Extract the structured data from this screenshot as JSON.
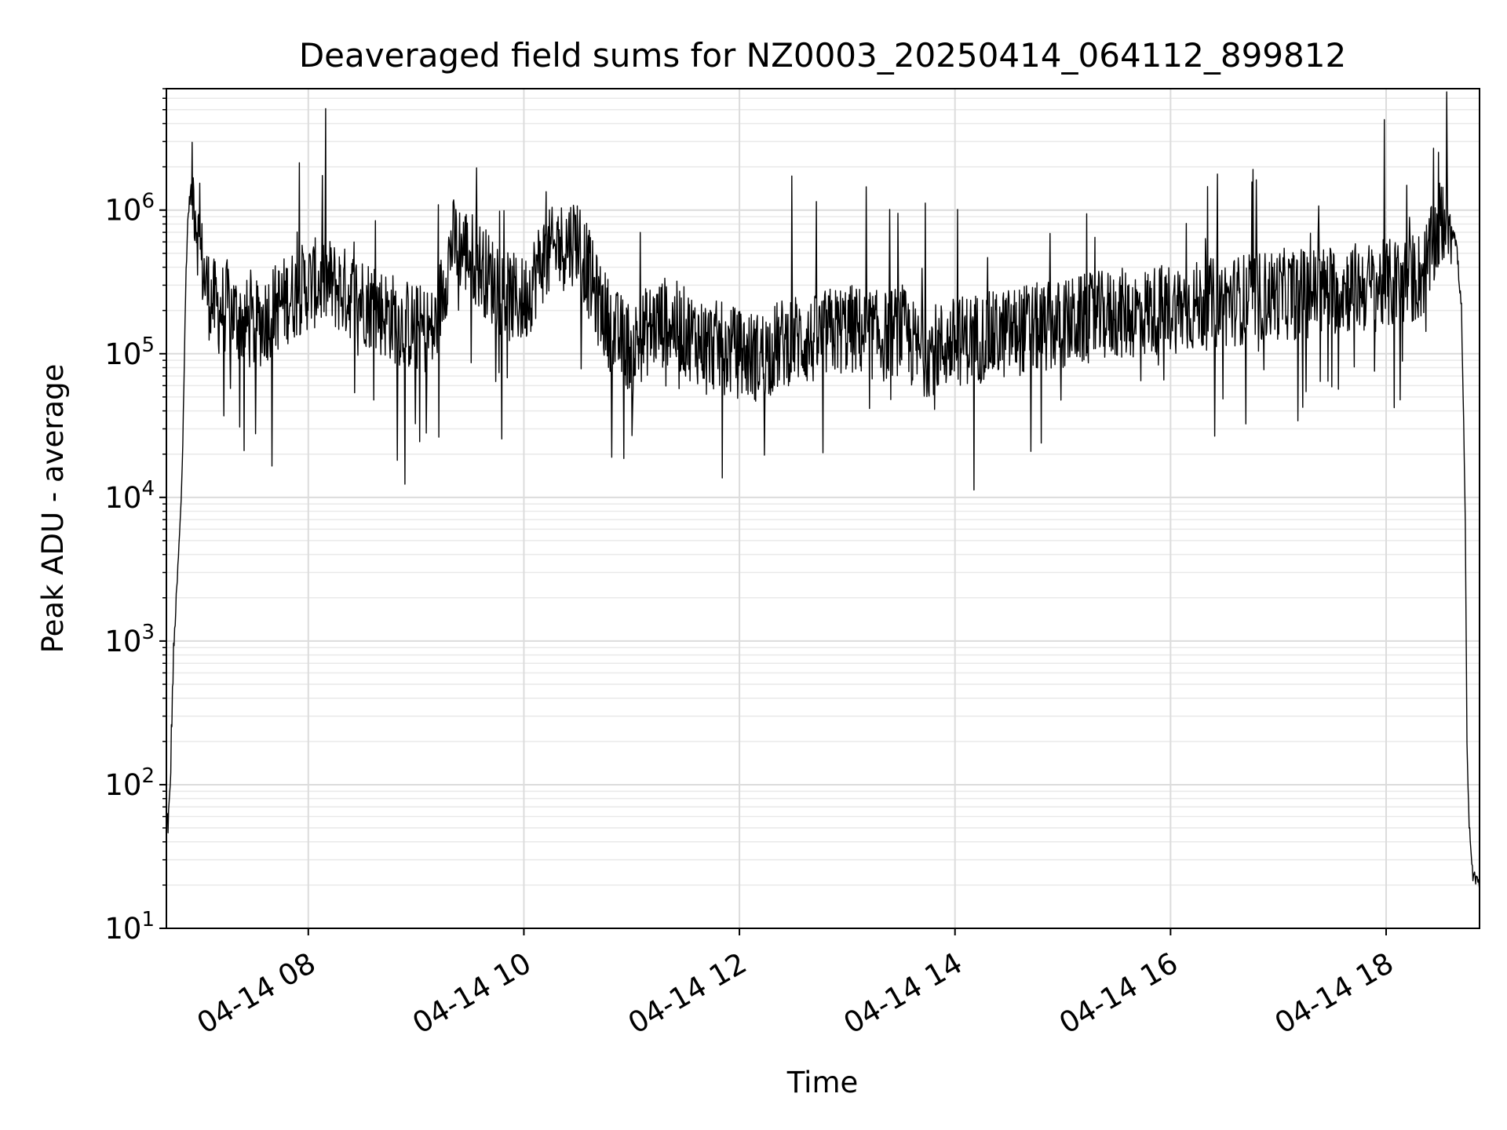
{
  "chart_data": {
    "type": "line",
    "title": "Deaveraged field sums for NZ0003_20250414_064112_899812",
    "xlabel": "Time",
    "ylabel": "Peak ADU - average",
    "yscale": "log",
    "ylim": [
      10,
      7000000
    ],
    "xlim": [
      "2025-04-14 06:41",
      "2025-04-14 18:52"
    ],
    "grid": true,
    "line_color": "#000000",
    "x_ticks": [
      "04-14 08",
      "04-14 10",
      "04-14 12",
      "04-14 14",
      "04-14 16",
      "04-14 18"
    ],
    "y_ticks": [
      {
        "base": "10",
        "exp": "1"
      },
      {
        "base": "10",
        "exp": "2"
      },
      {
        "base": "10",
        "exp": "3"
      },
      {
        "base": "10",
        "exp": "4"
      },
      {
        "base": "10",
        "exp": "5"
      },
      {
        "base": "10",
        "exp": "6"
      }
    ],
    "series": [
      {
        "x": [
          "06:41",
          "06:42",
          "06:43",
          "06:44",
          "06:45",
          "06:46",
          "06:47",
          "06:48",
          "06:49",
          "06:50",
          "06:51",
          "06:52",
          "06:53",
          "06:54",
          "06:55",
          "06:57",
          "06:59",
          "07:02",
          "07:05",
          "07:10",
          "07:15",
          "07:20",
          "07:30",
          "07:40",
          "07:50",
          "08:00",
          "08:10",
          "08:20",
          "08:30",
          "08:40",
          "08:50",
          "09:00",
          "09:10",
          "09:20",
          "09:30",
          "09:40",
          "09:50",
          "10:00",
          "10:10",
          "10:20",
          "10:30",
          "10:40",
          "10:50",
          "11:00",
          "11:10",
          "11:20",
          "11:30",
          "11:40",
          "11:50",
          "12:00",
          "12:10",
          "12:20",
          "12:30",
          "12:40",
          "12:50",
          "13:00",
          "13:10",
          "13:20",
          "13:30",
          "13:40",
          "13:50",
          "14:00",
          "14:10",
          "14:20",
          "14:30",
          "14:40",
          "14:50",
          "15:00",
          "15:10",
          "15:20",
          "15:30",
          "15:40",
          "15:50",
          "16:00",
          "16:10",
          "16:20",
          "16:30",
          "16:40",
          "16:50",
          "17:00",
          "17:10",
          "17:20",
          "17:30",
          "17:40",
          "17:50",
          "18:00",
          "18:10",
          "18:20",
          "18:25",
          "18:30",
          "18:33",
          "18:36",
          "18:39",
          "18:42",
          "18:44",
          "18:45",
          "18:46",
          "18:47",
          "18:48",
          "18:49",
          "18:50",
          "18:51",
          "18:52"
        ],
        "y": [
          60,
          55,
          80,
          300,
          800,
          1500,
          2500,
          4500,
          8000,
          20000,
          90000,
          400000,
          900000,
          1200000,
          1500000,
          1100000,
          600000,
          350000,
          250000,
          200000,
          220000,
          180000,
          150000,
          200000,
          250000,
          300000,
          320000,
          270000,
          240000,
          200000,
          170000,
          150000,
          140000,
          600000,
          500000,
          350000,
          250000,
          230000,
          450000,
          550000,
          650000,
          250000,
          140000,
          110000,
          150000,
          170000,
          140000,
          120000,
          110000,
          100000,
          95000,
          110000,
          130000,
          120000,
          140000,
          150000,
          140000,
          130000,
          150000,
          100000,
          110000,
          120000,
          130000,
          130000,
          140000,
          150000,
          150000,
          160000,
          170000,
          180000,
          190000,
          190000,
          200000,
          210000,
          210000,
          220000,
          230000,
          240000,
          250000,
          260000,
          260000,
          270000,
          280000,
          290000,
          290000,
          300000,
          320000,
          350000,
          500000,
          800000,
          900000,
          850000,
          600000,
          200000,
          8000,
          200,
          60,
          35,
          25,
          22,
          22,
          21,
          20
        ]
      }
    ]
  }
}
